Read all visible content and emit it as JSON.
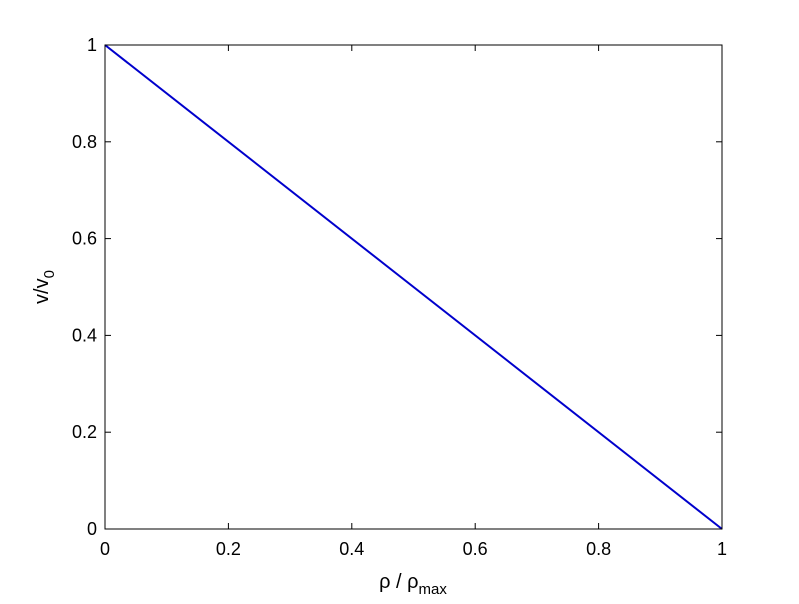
{
  "chart_data": {
    "type": "line",
    "title": "",
    "xlabel": {
      "base": "ρ / ρ",
      "sub": "max"
    },
    "ylabel": {
      "base": "v/v",
      "sub": "0"
    },
    "xlim": [
      0,
      1
    ],
    "ylim": [
      0,
      1
    ],
    "x_ticks": [
      0,
      0.2,
      0.4,
      0.6,
      0.8,
      1
    ],
    "x_tick_labels": [
      "0",
      "0.2",
      "0.4",
      "0.6",
      "0.8",
      "1"
    ],
    "y_ticks": [
      0,
      0.2,
      0.4,
      0.6,
      0.8,
      1
    ],
    "y_tick_labels": [
      "0",
      "0.2",
      "0.4",
      "0.6",
      "0.8",
      "1"
    ],
    "grid": false,
    "box": true,
    "series": [
      {
        "color": "#0000cc",
        "x": [
          0,
          1
        ],
        "y": [
          1,
          0
        ]
      }
    ]
  }
}
